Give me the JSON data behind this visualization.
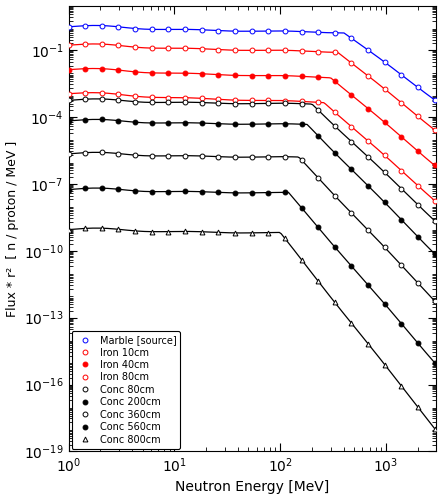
{
  "xlabel": "Neutron Energy [MeV]",
  "ylabel": "Flux * r²  [ n / proton / MeV ]",
  "xlim": [
    1.0,
    3000.0
  ],
  "ylim": [
    1e-19,
    10.0
  ],
  "series": [
    {
      "label": "Marble [source]",
      "color": "#0000ff",
      "markerfacecolor": "white",
      "markersize": 3.5,
      "linewidth": 0.9,
      "marker": "o",
      "y0": 1.0,
      "flat_slope": -0.08,
      "break_E": 400.0,
      "high_slope": -3.5
    },
    {
      "label": "Iron 10cm",
      "color": "#ff0000",
      "markerfacecolor": "white",
      "markersize": 3.5,
      "linewidth": 0.9,
      "marker": "o",
      "y0": 0.15,
      "flat_slope": -0.1,
      "break_E": 350.0,
      "high_slope": -3.8
    },
    {
      "label": "Iron 40cm",
      "color": "#ff0000",
      "markerfacecolor": "#ff0000",
      "markersize": 3.5,
      "linewidth": 0.9,
      "marker": "o",
      "y0": 0.012,
      "flat_slope": -0.12,
      "break_E": 300.0,
      "high_slope": -4.0
    },
    {
      "label": "Iron 80cm",
      "color": "#ff0000",
      "markerfacecolor": "white",
      "markersize": 3.5,
      "linewidth": 0.9,
      "marker": "o",
      "y0": 0.001,
      "flat_slope": -0.14,
      "break_E": 260.0,
      "high_slope": -4.2
    },
    {
      "label": "Conc 80cm",
      "color": "#000000",
      "markerfacecolor": "white",
      "markersize": 3.5,
      "linewidth": 0.9,
      "marker": "o",
      "y0": 0.0005,
      "flat_slope": -0.05,
      "break_E": 200.0,
      "high_slope": -4.5
    },
    {
      "label": "Conc 200cm",
      "color": "#000000",
      "markerfacecolor": "#000000",
      "markersize": 3.5,
      "linewidth": 0.9,
      "marker": "o",
      "y0": 6e-05,
      "flat_slope": -0.05,
      "break_E": 180.0,
      "high_slope": -4.8
    },
    {
      "label": "Conc 360cm",
      "color": "#000000",
      "markerfacecolor": "white",
      "markersize": 3.5,
      "linewidth": 0.9,
      "marker": "o",
      "y0": 2e-06,
      "flat_slope": -0.05,
      "break_E": 150.0,
      "high_slope": -5.0
    },
    {
      "label": "Conc 560cm",
      "color": "#000000",
      "markerfacecolor": "#000000",
      "markersize": 3.5,
      "linewidth": 0.9,
      "marker": "o",
      "y0": 5e-08,
      "flat_slope": -0.05,
      "break_E": 120.0,
      "high_slope": -5.5
    },
    {
      "label": "Conc 800cm",
      "color": "#000000",
      "markerfacecolor": "white",
      "markersize": 3.5,
      "linewidth": 0.9,
      "marker": "^",
      "y0": 8e-10,
      "flat_slope": -0.05,
      "break_E": 100.0,
      "high_slope": -6.0
    }
  ]
}
